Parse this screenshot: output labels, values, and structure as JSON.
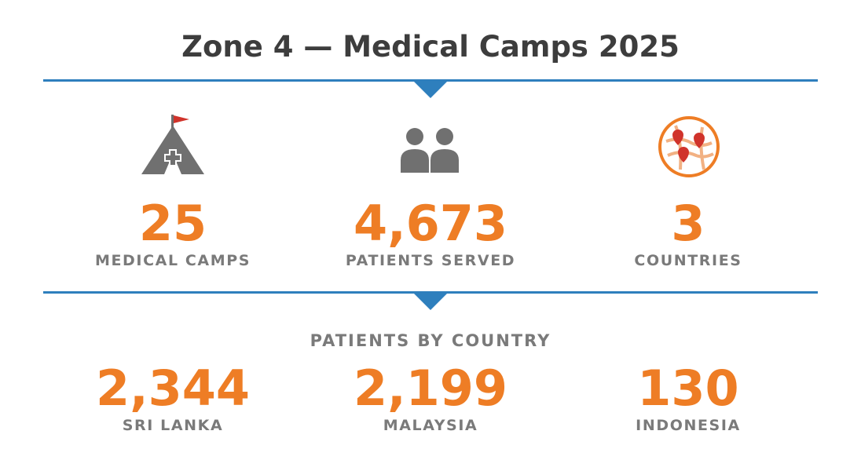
{
  "title": "Zone 4 — Medical Camps 2025",
  "colors": {
    "accent": "#ee7d25",
    "divider": "#2e7fbd",
    "label": "#7a7a7a",
    "title": "#3d3d3d"
  },
  "stats": [
    {
      "value": "25",
      "label": "MEDICAL CAMPS",
      "icon": "medical-tent-flag-icon"
    },
    {
      "value": "4,673",
      "label": "PATIENTS SERVED",
      "icon": "people-icon"
    },
    {
      "value": "3",
      "label": "COUNTRIES",
      "icon": "map-pins-icon"
    }
  ],
  "by_country": {
    "heading": "PATIENTS BY COUNTRY",
    "items": [
      {
        "value": "2,344",
        "label": "SRI LANKA"
      },
      {
        "value": "2,199",
        "label": "MALAYSIA"
      },
      {
        "value": "130",
        "label": "INDONESIA"
      }
    ]
  }
}
